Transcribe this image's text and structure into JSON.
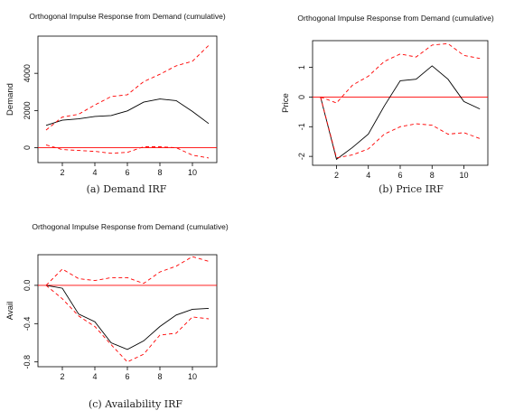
{
  "chart_data": [
    {
      "type": "line",
      "title": "Orthogonal Impulse Response from Demand (cumulative)",
      "ylabel": "Demand",
      "caption": "(a) Demand IRF",
      "xlim": [
        0.5,
        11.5
      ],
      "ylim": [
        -800,
        6000
      ],
      "x_ticks": [
        2,
        4,
        6,
        8,
        10
      ],
      "y_ticks": [
        0,
        2000,
        4000
      ],
      "zero_line": true,
      "x": [
        1,
        2,
        3,
        4,
        5,
        6,
        7,
        8,
        9,
        10,
        11
      ],
      "series": [
        {
          "role": "irf",
          "style": "solid",
          "color": "#000000",
          "values": [
            1200,
            1480,
            1550,
            1680,
            1730,
            1980,
            2450,
            2620,
            2530,
            1950,
            1300
          ]
        },
        {
          "role": "upper",
          "style": "dashed",
          "color": "#ff0000",
          "values": [
            950,
            1650,
            1800,
            2300,
            2750,
            2850,
            3550,
            3950,
            4400,
            4650,
            5500
          ]
        },
        {
          "role": "lower",
          "style": "dashed",
          "color": "#ff0000",
          "values": [
            150,
            -100,
            -150,
            -200,
            -300,
            -250,
            50,
            50,
            0,
            -400,
            -550
          ]
        }
      ]
    },
    {
      "type": "line",
      "title": "Orthogonal Impulse Response from Demand (cumulative)",
      "ylabel": "Price",
      "caption": "(b) Price IRF",
      "xlim": [
        0.5,
        11.5
      ],
      "ylim": [
        -2.3,
        1.9
      ],
      "x_ticks": [
        2,
        4,
        6,
        8,
        10
      ],
      "y_ticks": [
        -2,
        -1,
        0,
        1
      ],
      "zero_line": true,
      "x": [
        1,
        2,
        3,
        4,
        5,
        6,
        7,
        8,
        9,
        10,
        11
      ],
      "series": [
        {
          "role": "irf",
          "style": "solid",
          "color": "#000000",
          "values": [
            0,
            -2.1,
            -1.7,
            -1.25,
            -0.3,
            0.55,
            0.6,
            1.05,
            0.6,
            -0.15,
            -0.4
          ]
        },
        {
          "role": "upper",
          "style": "dashed",
          "color": "#ff0000",
          "values": [
            0,
            -0.2,
            0.4,
            0.7,
            1.2,
            1.45,
            1.35,
            1.75,
            1.8,
            1.4,
            1.3
          ]
        },
        {
          "role": "lower",
          "style": "dashed",
          "color": "#ff0000",
          "values": [
            0,
            -2.05,
            -1.95,
            -1.75,
            -1.25,
            -1.0,
            -0.9,
            -0.95,
            -1.25,
            -1.2,
            -1.4
          ]
        }
      ]
    },
    {
      "type": "line",
      "title": "Orthogonal Impulse Response from Demand (cumulative)",
      "ylabel": "Avail",
      "caption": "(c) Availability IRF",
      "xlim": [
        0.5,
        11.5
      ],
      "ylim": [
        -0.85,
        0.32
      ],
      "x_ticks": [
        2,
        4,
        6,
        8,
        10
      ],
      "y_ticks": [
        -0.8,
        -0.4,
        0.0
      ],
      "y_tick_labels": [
        "-0.8",
        "-0.4",
        "0.0"
      ],
      "zero_line": true,
      "x": [
        1,
        2,
        3,
        4,
        5,
        6,
        7,
        8,
        9,
        10,
        11
      ],
      "series": [
        {
          "role": "irf",
          "style": "solid",
          "color": "#000000",
          "values": [
            0,
            -0.03,
            -0.3,
            -0.38,
            -0.6,
            -0.67,
            -0.58,
            -0.43,
            -0.31,
            -0.25,
            -0.24
          ]
        },
        {
          "role": "upper",
          "style": "dashed",
          "color": "#ff0000",
          "values": [
            0,
            0.17,
            0.07,
            0.05,
            0.08,
            0.08,
            0.02,
            0.14,
            0.2,
            0.3,
            0.25
          ]
        },
        {
          "role": "lower",
          "style": "dashed",
          "color": "#ff0000",
          "values": [
            0,
            -0.14,
            -0.32,
            -0.43,
            -0.62,
            -0.8,
            -0.72,
            -0.52,
            -0.5,
            -0.33,
            -0.35
          ]
        }
      ]
    }
  ]
}
